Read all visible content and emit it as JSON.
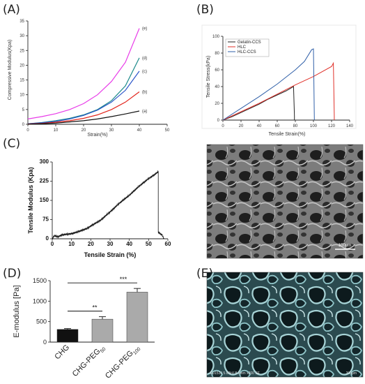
{
  "panels": {
    "a": "(A)",
    "b": "(B)",
    "c": "(C)",
    "d": "(D)",
    "e": "(E)"
  },
  "chart_data": [
    {
      "panel": "A",
      "type": "line",
      "xlabel": "Strain(%)",
      "ylabel": "Compressive Modulus(Kpa)",
      "xlim": [
        0,
        50
      ],
      "ylim": [
        0,
        35
      ],
      "xticks": [
        0,
        10,
        20,
        30,
        40,
        50
      ],
      "yticks": [
        0,
        5,
        10,
        15,
        20,
        25,
        30,
        35
      ],
      "grid": false,
      "series": [
        {
          "name": "(e)",
          "color": "#e83be8",
          "x": [
            0,
            5,
            10,
            15,
            20,
            25,
            30,
            35,
            40
          ],
          "y": [
            1.8,
            2.6,
            3.6,
            5.0,
            7.0,
            10.0,
            14.5,
            21.0,
            32.5
          ]
        },
        {
          "name": "(d)",
          "color": "#1b8a8a",
          "x": [
            0,
            5,
            10,
            15,
            20,
            25,
            30,
            35,
            40
          ],
          "y": [
            0.2,
            0.6,
            1.2,
            2.0,
            3.2,
            5.0,
            8.0,
            13.0,
            22.5
          ]
        },
        {
          "name": "(c)",
          "color": "#2a55c9",
          "x": [
            0,
            5,
            10,
            15,
            20,
            25,
            30,
            35,
            40
          ],
          "y": [
            0.2,
            0.5,
            1.0,
            1.8,
            3.0,
            4.8,
            7.5,
            11.5,
            18.0
          ]
        },
        {
          "name": "(b)",
          "color": "#e2231a",
          "x": [
            0,
            5,
            10,
            15,
            20,
            25,
            30,
            35,
            40
          ],
          "y": [
            0.1,
            0.3,
            0.7,
            1.2,
            2.0,
            3.2,
            5.0,
            7.5,
            11.0
          ]
        },
        {
          "name": "(a)",
          "color": "#111111",
          "x": [
            0,
            5,
            10,
            15,
            20,
            25,
            30,
            35,
            40
          ],
          "y": [
            0.0,
            0.2,
            0.4,
            0.8,
            1.2,
            1.8,
            2.6,
            3.5,
            4.5
          ]
        }
      ]
    },
    {
      "panel": "B",
      "type": "line",
      "xlabel": "Tensile Strain(%)",
      "ylabel": "Tensile Stress(kPa)",
      "xlim": [
        0,
        140
      ],
      "ylim": [
        0,
        100
      ],
      "xticks": [
        0,
        20,
        40,
        60,
        80,
        100,
        120,
        140
      ],
      "yticks": [
        0,
        20,
        40,
        60,
        80,
        100
      ],
      "grid": false,
      "legend": "top-left",
      "series": [
        {
          "name": "Gelatin-CCS",
          "color": "#222222",
          "x": [
            0,
            10,
            20,
            30,
            40,
            50,
            60,
            70,
            78,
            79,
            79
          ],
          "y": [
            0,
            4,
            9,
            14,
            19,
            25,
            30,
            35,
            40,
            5,
            0
          ]
        },
        {
          "name": "HLC",
          "color": "#e0312a",
          "x": [
            0,
            20,
            40,
            60,
            80,
            100,
            120,
            122,
            123,
            123
          ],
          "y": [
            0,
            10,
            20,
            31,
            42,
            52,
            64,
            68,
            5,
            0
          ]
        },
        {
          "name": "HLC-CCS",
          "color": "#2f5fa8",
          "x": [
            0,
            20,
            40,
            60,
            80,
            90,
            98,
            100,
            101
          ],
          "y": [
            0,
            14,
            28,
            43,
            60,
            70,
            84,
            85,
            0
          ]
        }
      ]
    },
    {
      "panel": "C",
      "type": "line",
      "xlabel": "Tensile Strain (%)",
      "ylabel": "Tensile Modulus (Kpa)",
      "xlim": [
        0,
        60
      ],
      "ylim": [
        0,
        300
      ],
      "xticks": [
        0,
        10,
        20,
        30,
        40,
        50,
        60
      ],
      "yticks": [
        0,
        75,
        150,
        225,
        300
      ],
      "grid": false,
      "series": [
        {
          "name": "",
          "color": "#111111",
          "x": [
            0,
            1,
            3,
            5,
            8,
            10,
            12,
            15,
            18,
            20,
            25,
            30,
            35,
            40,
            45,
            50,
            53,
            55,
            55,
            56,
            57,
            58
          ],
          "y": [
            0,
            12,
            8,
            15,
            18,
            20,
            24,
            32,
            40,
            50,
            72,
            105,
            140,
            170,
            205,
            235,
            250,
            262,
            25,
            20,
            15,
            0
          ]
        }
      ]
    },
    {
      "panel": "D",
      "type": "bar",
      "ylabel": "E-modulus [Pa]",
      "ylim": [
        0,
        1500
      ],
      "yticks": [
        0,
        500,
        1000,
        1500
      ],
      "categories": [
        "CHG",
        "CHG-PEG50",
        "CHG-PEG100"
      ],
      "category_main": [
        "CHG",
        "CHG-PEG",
        "CHG-PEG"
      ],
      "category_sub": [
        "",
        "50",
        "100"
      ],
      "values": [
        310,
        560,
        1220
      ],
      "errors": [
        20,
        60,
        90
      ],
      "bar_colors": [
        "#111111",
        "#aaaaaa",
        "#aaaaaa"
      ],
      "significance": [
        {
          "from": 0,
          "to": 1,
          "label": "**"
        },
        {
          "from": 0,
          "to": 2,
          "label": "***"
        }
      ]
    }
  ],
  "images": {
    "c_right": {
      "scale_label": "100μm"
    },
    "e": {
      "caption": "SU1510 5.00kV 8.3mm x200 SE",
      "scale_label": "200μm"
    }
  }
}
